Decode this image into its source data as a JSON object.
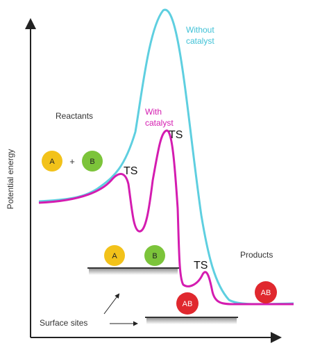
{
  "axis": {
    "ylabel": "Potential energy"
  },
  "curves": {
    "without_catalyst": {
      "label_line1": "Without",
      "label_line2": "catalyst",
      "color": "#5ecfe0"
    },
    "with_catalyst": {
      "label_line1": "With",
      "label_line2": "catalyst",
      "color": "#d41cb0"
    }
  },
  "labels": {
    "reactants": "Reactants",
    "products": "Products",
    "surface_sites": "Surface sites",
    "ts": "TS"
  },
  "molecules": {
    "a": {
      "text": "A",
      "color": "#f2c21a"
    },
    "b": {
      "text": "B",
      "color": "#7cc43a"
    },
    "ab": {
      "text": "AB",
      "color": "#e0282e"
    },
    "plus": "+"
  }
}
